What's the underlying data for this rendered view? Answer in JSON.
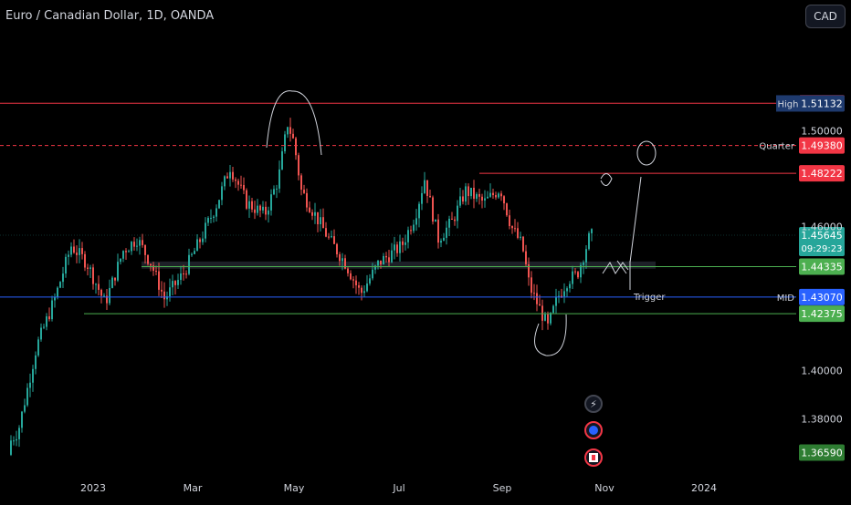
{
  "header": {
    "title": "Euro / Canadian Dollar, 1D, OANDA",
    "currency_button": "CAD"
  },
  "colors": {
    "up": "#26a69a",
    "down": "#ef5350",
    "red_line": "#f23645",
    "green_line": "#4caf50",
    "blue_line": "#2962ff",
    "background": "#000000"
  },
  "chart_data": {
    "type": "candlestick",
    "symbol": "EURCAD",
    "interval": "1D",
    "exchange": "OANDA",
    "x_ticks": [
      "2023",
      "Mar",
      "May",
      "Jul",
      "Sep",
      "Nov",
      "2024"
    ],
    "y_ticks": [
      "1.50000",
      "1.46000",
      "1.40000",
      "1.38000"
    ],
    "ylim": [
      1.357,
      1.543
    ],
    "levels": [
      {
        "price": 1.51139,
        "label": "1.51139",
        "tag": "",
        "color": "#f23645",
        "style": "solid"
      },
      {
        "price": 1.51132,
        "label": "1.51132",
        "tag": "High",
        "color": "#1e3a6e",
        "style": "none"
      },
      {
        "price": 1.4938,
        "label": "1.49380",
        "tag": "Quarter",
        "color": "#f23645",
        "style": "dashed"
      },
      {
        "price": 1.48222,
        "label": "1.48222",
        "tag": "",
        "color": "#f23645",
        "style": "solid"
      },
      {
        "price": 1.44335,
        "label": "1.44335",
        "tag": "",
        "color": "#4caf50",
        "style": "solid"
      },
      {
        "price": 1.4307,
        "label": "1.43070",
        "tag": "MID",
        "color": "#2962ff",
        "style": "solid"
      },
      {
        "price": 1.42375,
        "label": "1.42375",
        "tag": "",
        "color": "#4caf50",
        "style": "solid"
      },
      {
        "price": 1.3659,
        "label": "1.36590",
        "tag": "",
        "color": "#4caf50",
        "style": "none"
      }
    ],
    "current_price": {
      "price": 1.45645,
      "label": "1.45645",
      "countdown": "09:29:23"
    },
    "annotation": "Trigger",
    "anchors": [
      {
        "x": 0,
        "p": 1.365
      },
      {
        "x": 20,
        "p": 1.375
      },
      {
        "x": 40,
        "p": 1.41
      },
      {
        "x": 60,
        "p": 1.43
      },
      {
        "x": 78,
        "p": 1.452
      },
      {
        "x": 95,
        "p": 1.445
      },
      {
        "x": 115,
        "p": 1.428
      },
      {
        "x": 135,
        "p": 1.45
      },
      {
        "x": 150,
        "p": 1.455
      },
      {
        "x": 165,
        "p": 1.445
      },
      {
        "x": 180,
        "p": 1.43
      },
      {
        "x": 200,
        "p": 1.44
      },
      {
        "x": 220,
        "p": 1.455
      },
      {
        "x": 238,
        "p": 1.47
      },
      {
        "x": 252,
        "p": 1.485
      },
      {
        "x": 270,
        "p": 1.47
      },
      {
        "x": 290,
        "p": 1.465
      },
      {
        "x": 305,
        "p": 1.48
      },
      {
        "x": 315,
        "p": 1.503
      },
      {
        "x": 322,
        "p": 1.495
      },
      {
        "x": 330,
        "p": 1.475
      },
      {
        "x": 345,
        "p": 1.465
      },
      {
        "x": 360,
        "p": 1.455
      },
      {
        "x": 378,
        "p": 1.445
      },
      {
        "x": 395,
        "p": 1.432
      },
      {
        "x": 415,
        "p": 1.445
      },
      {
        "x": 440,
        "p": 1.452
      },
      {
        "x": 455,
        "p": 1.465
      },
      {
        "x": 465,
        "p": 1.48
      },
      {
        "x": 480,
        "p": 1.455
      },
      {
        "x": 495,
        "p": 1.462
      },
      {
        "x": 510,
        "p": 1.475
      },
      {
        "x": 530,
        "p": 1.47
      },
      {
        "x": 548,
        "p": 1.476
      },
      {
        "x": 560,
        "p": 1.46
      },
      {
        "x": 572,
        "p": 1.452
      },
      {
        "x": 580,
        "p": 1.435
      },
      {
        "x": 592,
        "p": 1.425
      },
      {
        "x": 600,
        "p": 1.418
      },
      {
        "x": 610,
        "p": 1.43
      },
      {
        "x": 622,
        "p": 1.438
      },
      {
        "x": 632,
        "p": 1.44
      },
      {
        "x": 645,
        "p": 1.455
      },
      {
        "x": 650,
        "p": 1.457
      }
    ]
  }
}
